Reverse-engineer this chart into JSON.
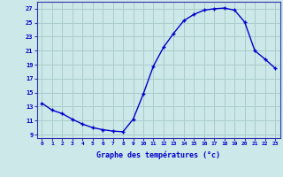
{
  "x": [
    0,
    1,
    2,
    3,
    4,
    5,
    6,
    7,
    8,
    9,
    10,
    11,
    12,
    13,
    14,
    15,
    16,
    17,
    18,
    19,
    20,
    21,
    22,
    23
  ],
  "y": [
    13.5,
    12.5,
    12.0,
    11.2,
    10.5,
    10.0,
    9.7,
    9.5,
    9.4,
    11.2,
    14.8,
    18.8,
    21.5,
    23.5,
    25.3,
    26.2,
    26.8,
    27.0,
    27.1,
    26.8,
    25.1,
    21.0,
    19.8,
    18.5
  ],
  "line_color": "#0000cc",
  "marker": "+",
  "marker_color": "#0000cc",
  "bg_color": "#cce8e8",
  "grid_color": "#aacccc",
  "xlabel": "Graphe des températures (°c)",
  "xlabel_color": "#0000cc",
  "ylabel_ticks": [
    9,
    11,
    13,
    15,
    17,
    19,
    21,
    23,
    25,
    27
  ],
  "xlim": [
    -0.5,
    23.5
  ],
  "ylim": [
    8.5,
    28.0
  ],
  "tick_color": "#0000cc",
  "spine_color": "#3333aa",
  "font_family": "monospace"
}
